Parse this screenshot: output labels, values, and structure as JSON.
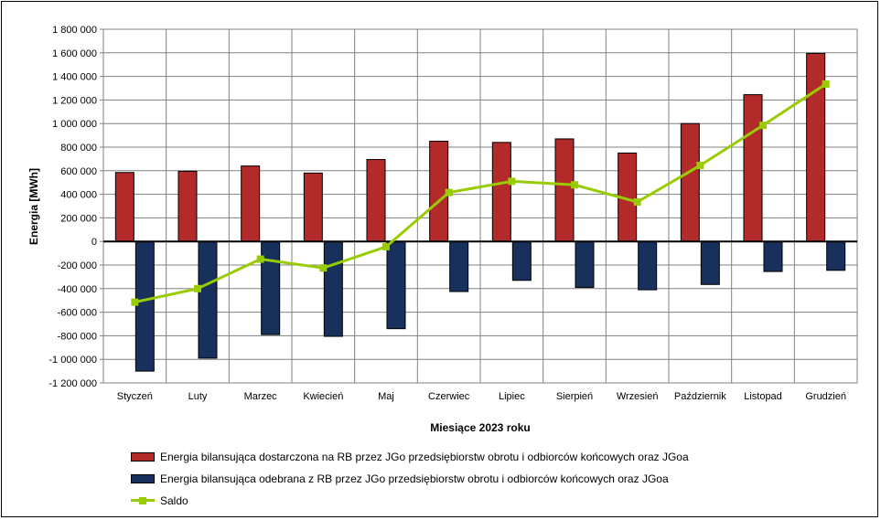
{
  "chart_data": {
    "type": "bar",
    "xlabel": "Miesiące 2023  roku",
    "ylabel": "Energia [MWh]",
    "ylim": [
      -1200000,
      1800000
    ],
    "ytick_step": 200000,
    "grid": true,
    "legend_position": "bottom",
    "categories": [
      "Styczeń",
      "Luty",
      "Marzec",
      "Kwiecień",
      "Maj",
      "Czerwiec",
      "Lipiec",
      "Sierpień",
      "Wrzesień",
      "Październik",
      "Listopad",
      "Grudzień"
    ],
    "yticks": [
      "1 800 000",
      "1 600 000",
      "1 400 000",
      "1 200 000",
      "1 000 000",
      "800 000",
      "600 000",
      "400 000",
      "200 000",
      "0",
      "-200 000",
      "-400 000",
      "-600 000",
      "-800 000",
      "-1 000 000",
      "-1 200 000"
    ],
    "series": [
      {
        "name": "Energia bilansująca dostarczona na RB przez JGo przedsiębiorstw obrotu i odbiorców końcowych oraz JGoa",
        "kind": "bar",
        "color": "#b22a2a",
        "values": [
          585000,
          595000,
          640000,
          580000,
          695000,
          850000,
          840000,
          870000,
          750000,
          1000000,
          1245000,
          1595000
        ]
      },
      {
        "name": "Energia bilansująca odebrana z RB przez JGo przedsiębiorstw obrotu i odbiorców końcowych oraz JGoa",
        "kind": "bar",
        "color": "#17305c",
        "values": [
          -1100000,
          -990000,
          -790000,
          -805000,
          -740000,
          -425000,
          -330000,
          -390000,
          -410000,
          -365000,
          -255000,
          -245000
        ]
      },
      {
        "name": "Saldo",
        "kind": "line",
        "color": "#99cc00",
        "values": [
          -515000,
          -400000,
          -150000,
          -225000,
          -45000,
          415000,
          510000,
          480000,
          335000,
          645000,
          985000,
          1335000
        ]
      }
    ]
  }
}
